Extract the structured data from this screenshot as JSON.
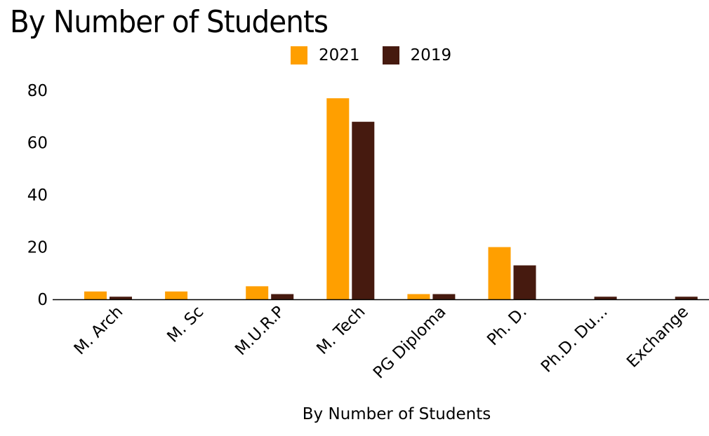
{
  "chart_data": {
    "type": "bar",
    "title": "By Number of Students",
    "xlabel": "By Number of Students",
    "ylabel": "",
    "categories": [
      "M. Arch",
      "M. Sc",
      "M.U.R.P",
      "M. Tech",
      "PG Diploma",
      "Ph. D.",
      "Ph.D. Du...",
      "Exchange"
    ],
    "series": [
      {
        "name": "2021",
        "color": "#FF9F00",
        "values": [
          3,
          3,
          5,
          77,
          2,
          20,
          0,
          0
        ]
      },
      {
        "name": "2019",
        "color": "#461A0F",
        "values": [
          1,
          0,
          2,
          68,
          2,
          13,
          1,
          1
        ]
      }
    ],
    "yticks": [
      0,
      20,
      40,
      60,
      80
    ],
    "ylim": [
      0,
      80
    ],
    "grid": false,
    "legend_position": "top-center"
  }
}
